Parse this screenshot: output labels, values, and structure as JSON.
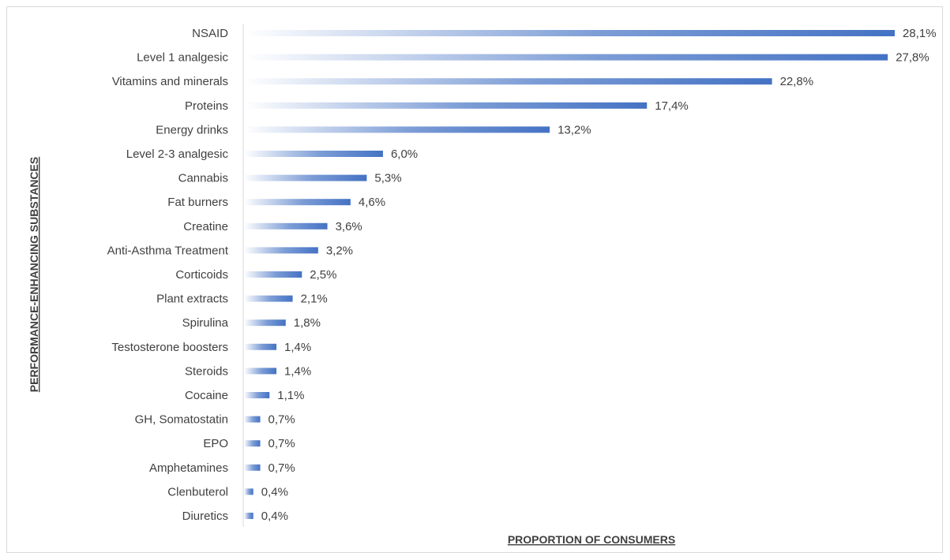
{
  "chart_data": {
    "type": "bar",
    "orientation": "horizontal",
    "title": "",
    "xlabel": "PROPORTION OF CONSUMERS",
    "ylabel": "PERFORMANCE-ENHANCING SUBSTANCES",
    "xlim": [
      0,
      28.1
    ],
    "grid": false,
    "legend": "none",
    "bar_color": "#4472c4",
    "categories": [
      "NSAID",
      "Level 1 analgesic",
      "Vitamins and minerals",
      "Proteins",
      "Energy drinks",
      "Level 2-3 analgesic",
      "Cannabis",
      "Fat burners",
      "Creatine",
      "Anti-Asthma Treatment",
      "Corticoids",
      "Plant extracts",
      "Spirulina",
      "Testosterone boosters",
      "Steroids",
      "Cocaine",
      "GH, Somatostatin",
      "EPO",
      "Amphetamines",
      "Clenbuterol",
      "Diuretics"
    ],
    "values": [
      28.1,
      27.8,
      22.8,
      17.4,
      13.2,
      6.0,
      5.3,
      4.6,
      3.6,
      3.2,
      2.5,
      2.1,
      1.8,
      1.4,
      1.4,
      1.1,
      0.7,
      0.7,
      0.7,
      0.4,
      0.4
    ],
    "value_labels": [
      "28,1%",
      "27,8%",
      "22,8%",
      "17,4%",
      "13,2%",
      "6,0%",
      "5,3%",
      "4,6%",
      "3,6%",
      "3,2%",
      "2,5%",
      "2,1%",
      "1,8%",
      "1,4%",
      "1,4%",
      "1,1%",
      "0,7%",
      "0,7%",
      "0,7%",
      "0,4%",
      "0,4%"
    ]
  }
}
